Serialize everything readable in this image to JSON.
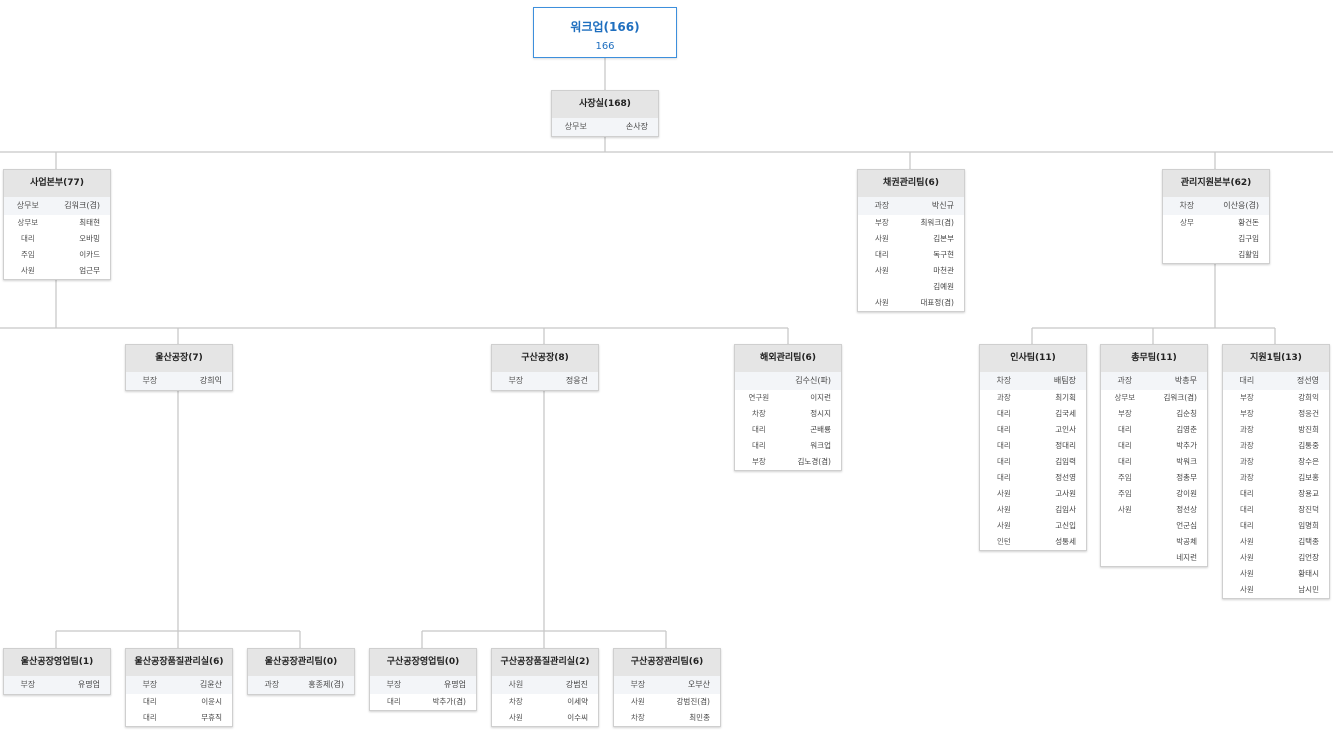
{
  "root": {
    "title": "워크업(166)",
    "count": "166"
  },
  "colors": {
    "accent": "#1f6fbf",
    "header_bg": "#e5e5e5",
    "line": "#c8c8c8"
  },
  "orgs": [
    {
      "title": "사장실(168)",
      "members": [
        [
          "상무보",
          "손사장"
        ]
      ]
    },
    {
      "title": "사업본부(77)",
      "members": [
        [
          "상무보",
          "김워크(겸)"
        ],
        [
          "상무보",
          "최태현"
        ],
        [
          "대리",
          "오바밍"
        ],
        [
          "주임",
          "이카드"
        ],
        [
          "사원",
          "엄근무"
        ]
      ]
    },
    {
      "title": "채권관리팀(6)",
      "members": [
        [
          "과장",
          "박신규"
        ],
        [
          "부장",
          "최워크(겸)"
        ],
        [
          "사원",
          "김본부"
        ],
        [
          "대리",
          "독구현"
        ],
        [
          "사원",
          "마천관"
        ],
        [
          "",
          "김예원"
        ],
        [
          "사원",
          "대표정(겸)"
        ]
      ]
    },
    {
      "title": "관리지원본부(62)",
      "members": [
        [
          "차장",
          "이산응(겸)"
        ],
        [
          "상무",
          "황건돈"
        ],
        [
          "",
          "김구임"
        ],
        [
          "",
          "김활임"
        ]
      ]
    },
    {
      "title": "울산공장(7)",
      "members": [
        [
          "부장",
          "강희익"
        ]
      ]
    },
    {
      "title": "구산공장(8)",
      "members": [
        [
          "부장",
          "정응건"
        ]
      ]
    },
    {
      "title": "해외관리팀(6)",
      "members": [
        [
          "",
          "김수신(파)"
        ],
        [
          "연구원",
          "이지런"
        ],
        [
          "차장",
          "정시지"
        ],
        [
          "대리",
          "곤배룡"
        ],
        [
          "대리",
          "워크업"
        ],
        [
          "부장",
          "김노경(겸)"
        ]
      ]
    },
    {
      "title": "인사팀(11)",
      "members": [
        [
          "차장",
          "배팀장"
        ],
        [
          "과장",
          "최기획"
        ],
        [
          "대리",
          "김국세"
        ],
        [
          "대리",
          "고인사"
        ],
        [
          "대리",
          "정대리"
        ],
        [
          "대리",
          "김임력"
        ],
        [
          "대리",
          "정선영"
        ],
        [
          "사원",
          "고사원"
        ],
        [
          "사원",
          "김임사"
        ],
        [
          "사원",
          "고신입"
        ],
        [
          "인턴",
          "성통세"
        ]
      ]
    },
    {
      "title": "총무팀(11)",
      "members": [
        [
          "과장",
          "박총무"
        ],
        [
          "상무보",
          "김워크(겸)"
        ],
        [
          "부장",
          "김순칭"
        ],
        [
          "대리",
          "김영춘"
        ],
        [
          "대리",
          "박추가"
        ],
        [
          "대리",
          "박워크"
        ],
        [
          "주임",
          "정총무"
        ],
        [
          "주임",
          "강이원"
        ],
        [
          "사원",
          "정선상"
        ],
        [
          "",
          "언군심"
        ],
        [
          "",
          "박공체"
        ],
        [
          "",
          "네지런"
        ]
      ]
    },
    {
      "title": "지원1팀(13)",
      "members": [
        [
          "대리",
          "정선영"
        ],
        [
          "부장",
          "강희익"
        ],
        [
          "부장",
          "정응건"
        ],
        [
          "과장",
          "방진희"
        ],
        [
          "과장",
          "김통중"
        ],
        [
          "과장",
          "장수은"
        ],
        [
          "과장",
          "김보홍"
        ],
        [
          "대리",
          "장용교"
        ],
        [
          "대리",
          "장진덕"
        ],
        [
          "대리",
          "임명희"
        ],
        [
          "사원",
          "김택종"
        ],
        [
          "사원",
          "김언장"
        ],
        [
          "사원",
          "황태시"
        ],
        [
          "사원",
          "남시민"
        ]
      ]
    },
    {
      "title": "울산공장영업팀(1)",
      "members": [
        [
          "부장",
          "유명업"
        ]
      ]
    },
    {
      "title": "울산공장품질관리실(6)",
      "members": [
        [
          "부장",
          "김윤산"
        ],
        [
          "대리",
          "이윤시"
        ],
        [
          "대리",
          "무휴직"
        ]
      ]
    },
    {
      "title": "울산공장관리팀(0)",
      "members": [
        [
          "과장",
          "홍종제(겸)"
        ]
      ]
    },
    {
      "title": "구산공장영업팀(0)",
      "members": [
        [
          "부장",
          "유명업"
        ],
        [
          "대리",
          "박추가(겸)"
        ]
      ]
    },
    {
      "title": "구산공장품질관리실(2)",
      "members": [
        [
          "사원",
          "강범진"
        ],
        [
          "차장",
          "이세약"
        ],
        [
          "사원",
          "이수씨"
        ]
      ]
    },
    {
      "title": "구산공장관리팀(6)",
      "members": [
        [
          "부장",
          "오부산"
        ],
        [
          "사원",
          "강범진(겸)"
        ],
        [
          "차장",
          "최민종"
        ]
      ]
    }
  ]
}
